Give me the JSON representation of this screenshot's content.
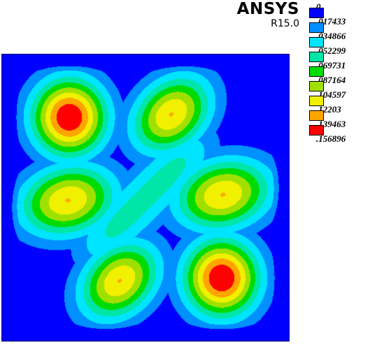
{
  "brand": {
    "name": "ANSYS",
    "version": "R15.0"
  },
  "colors": {
    "bands": [
      "#0000ff",
      "#0090ff",
      "#00e5ff",
      "#00e6a8",
      "#00dc00",
      "#a0e000",
      "#f0f000",
      "#ffa500",
      "#ff0000"
    ]
  },
  "chart_data": {
    "type": "contour",
    "title": "",
    "xlabel": "",
    "ylabel": "",
    "legend": {
      "placement": "top-right",
      "entries": [
        {
          "label": "0",
          "value": 0
        },
        {
          "label": ".017433",
          "value": 0.017433
        },
        {
          "label": ".034866",
          "value": 0.034866
        },
        {
          "label": ".052299",
          "value": 0.052299
        },
        {
          "label": ".069731",
          "value": 0.069731
        },
        {
          "label": ".087164",
          "value": 0.087164
        },
        {
          "label": ".104597",
          "value": 0.104597
        },
        {
          "label": ".12203",
          "value": 0.12203
        },
        {
          "label": ".139463",
          "value": 0.139463
        },
        {
          "label": ".156896",
          "value": 0.156896
        }
      ]
    },
    "range": [
      0,
      0.156896
    ],
    "peaks": [
      {
        "region": "top-left",
        "level": 0.156896
      },
      {
        "region": "top-center",
        "level": 0.12203
      },
      {
        "region": "middle-left",
        "level": 0.12203
      },
      {
        "region": "middle-right",
        "level": 0.12203
      },
      {
        "region": "bottom-center",
        "level": 0.12203
      },
      {
        "region": "bottom-right",
        "level": 0.156896
      }
    ]
  }
}
